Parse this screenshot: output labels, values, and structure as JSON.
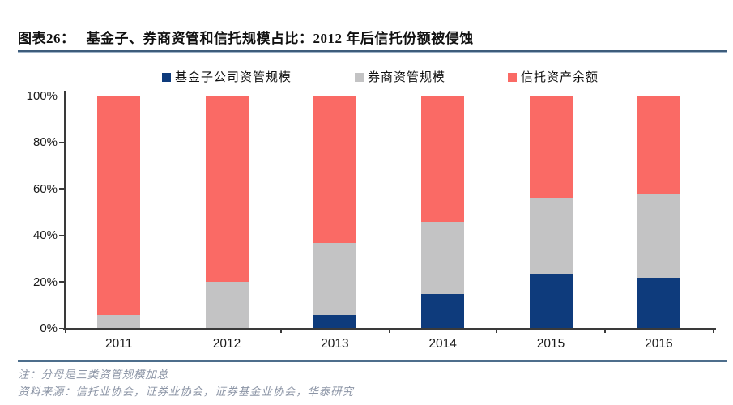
{
  "header": {
    "title_prefix": "图表26：",
    "title_text": "基金子、券商资管和信托规模占比：2012 年后信托份额被侵蚀"
  },
  "colors": {
    "fund_navy": "#0e3b7c",
    "broker_gray": "#c3c3c4",
    "trust_red": "#fa6a65",
    "title_rule_blue": "#3d5c7b",
    "footer_rule_blue": "#4d6e8c",
    "axis": "#3a3a3a",
    "note_text": "#8c95a6"
  },
  "chart_data": {
    "type": "bar",
    "subtype": "stacked-100-percent",
    "categories": [
      "2011",
      "2012",
      "2013",
      "2014",
      "2015",
      "2016"
    ],
    "series": [
      {
        "name": "基金子公司资管规模",
        "color": "#0e3b7c",
        "values": [
          0,
          0,
          5.5,
          14.5,
          23.3,
          21.5
        ]
      },
      {
        "name": "券商资管规模",
        "color": "#c3c3c4",
        "values": [
          5.5,
          20,
          31,
          31,
          32.3,
          36.5
        ]
      },
      {
        "name": "信托资产余额",
        "color": "#fa6a65",
        "values": [
          94.5,
          80,
          63.5,
          54.5,
          44.4,
          42
        ]
      }
    ],
    "title": "基金子、券商资管和信托规模占比：2012 年后信托份额被侵蚀",
    "xlabel": "",
    "ylabel": "",
    "ylim": [
      0,
      100
    ],
    "y_ticks": [
      0,
      20,
      40,
      60,
      80,
      100
    ],
    "y_tick_labels": [
      "0%",
      "20%",
      "40%",
      "60%",
      "80%",
      "100%"
    ],
    "grid": false,
    "legend_position": "top"
  },
  "footer": {
    "note": "注：分母是三类资管规模加总",
    "source": "资料来源：信托业协会，证券业协会，证券基金业协会，华泰研究"
  }
}
